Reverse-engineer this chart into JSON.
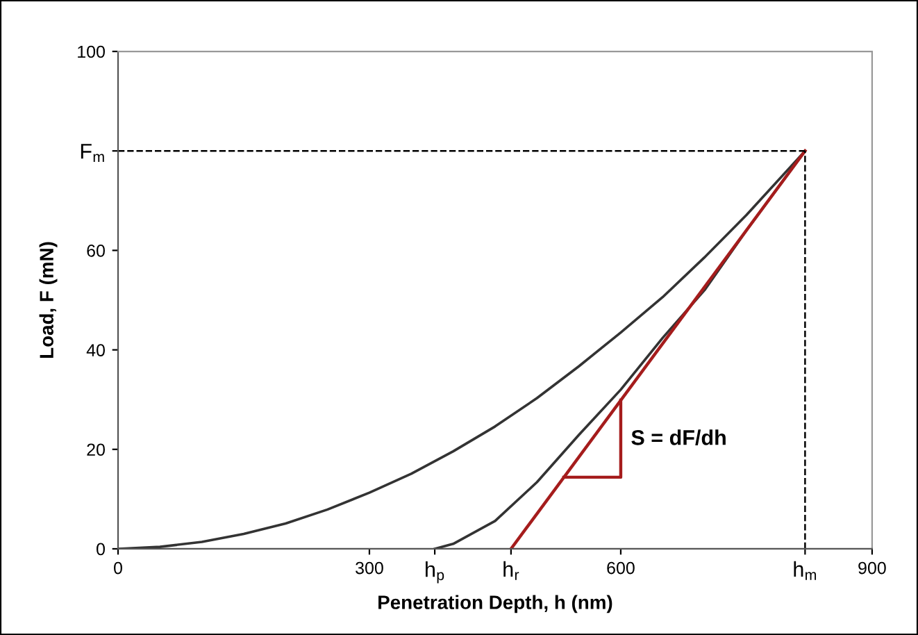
{
  "chart_data": {
    "type": "line",
    "xlabel": "Penetration Depth, h (nm)",
    "ylabel": "Load, F (mN)",
    "xlim": [
      0,
      900
    ],
    "ylim": [
      0,
      100
    ],
    "xticks": [
      0,
      300,
      {
        "value": 378,
        "label": "h$_{p}$"
      },
      {
        "value": 469,
        "label": "h$_{r}$"
      },
      600,
      {
        "value": 820,
        "label": "h$_{m}$"
      },
      900
    ],
    "yticks": [
      0,
      20,
      40,
      60,
      {
        "value": 80,
        "label": "F$_{m}$"
      },
      100
    ],
    "grid": false,
    "legend": false,
    "marker": "none",
    "line_style": "solid",
    "series": [
      {
        "color": "#333333",
        "x": [
          0,
          50,
          100,
          150,
          200,
          250,
          300,
          350,
          400,
          450,
          500,
          550,
          600,
          650,
          700,
          750,
          820
        ],
        "values": [
          0,
          0.4,
          1.4,
          3,
          5.1,
          7.9,
          11.3,
          15.1,
          19.6,
          24.6,
          30.3,
          36.7,
          43.5,
          50.6,
          58.6,
          67.1,
          80
        ]
      },
      {
        "color": "#333333",
        "x": [
          378,
          400,
          450,
          500,
          550,
          600,
          650,
          700,
          750,
          820
        ],
        "values": [
          0,
          1,
          5.6,
          13.4,
          22.9,
          32,
          42.4,
          52,
          64,
          80
        ]
      },
      {
        "color": "#a51c1c",
        "x": [
          469,
          820
        ],
        "values": [
          0,
          80
        ]
      },
      {
        "color": "#a51c1c",
        "x": [
          532,
          600,
          600
        ],
        "values": [
          14.4,
          14.4,
          29.9
        ]
      }
    ],
    "ref_lines": [
      {
        "axis": "y",
        "value": 80,
        "color": "#000000",
        "line_style": "dashed"
      },
      {
        "axis": "x",
        "value": 820,
        "color": "#000000",
        "line_style": "dashed"
      }
    ],
    "annotations": [
      "S = dF/dh"
    ]
  }
}
